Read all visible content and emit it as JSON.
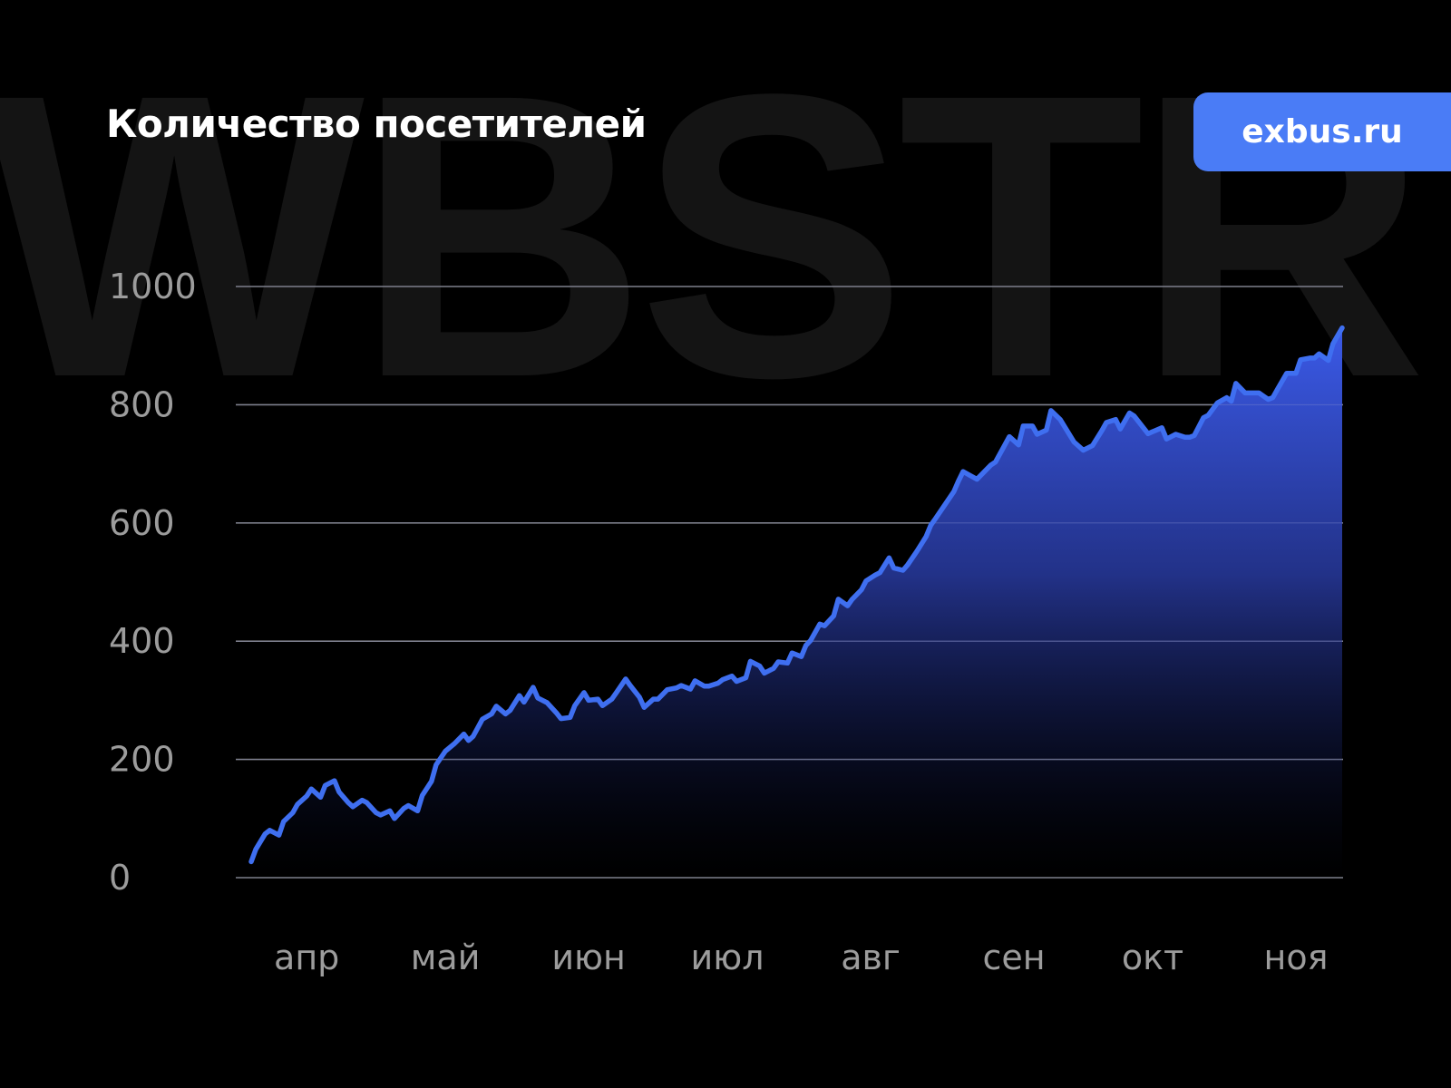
{
  "watermark": "WBSTR",
  "header": {
    "title": "Количество посетителей",
    "badge": "exbus.ru"
  },
  "colors": {
    "background": "#000000",
    "line": "#3f6ff0",
    "badge": "#4a7cf6",
    "grid": "#7a7a7a",
    "watermark": "#141414"
  },
  "chart_data": {
    "type": "area",
    "title": "Количество посетителей",
    "xlabel": "",
    "ylabel": "",
    "ylim": [
      0,
      1000
    ],
    "yticks": [
      "0",
      "200",
      "400",
      "600",
      "800",
      "1000"
    ],
    "xticks": [
      "апр",
      "май",
      "июн",
      "июл",
      "авг",
      "сен",
      "окт",
      "ноя"
    ],
    "grid": "horizontal",
    "legend": "none",
    "series": [
      {
        "x": [
          "04-03",
          "04-04",
          "04-06",
          "04-07",
          "04-09",
          "04-10",
          "04-12",
          "04-13",
          "04-15",
          "04-16",
          "04-18",
          "04-19",
          "04-21",
          "04-22",
          "04-24",
          "04-25",
          "04-27",
          "04-28",
          "04-30",
          "05-01",
          "05-03",
          "05-04",
          "05-06",
          "05-07",
          "05-09",
          "05-10",
          "05-12",
          "05-13",
          "05-15",
          "05-17",
          "05-19",
          "05-20",
          "05-21",
          "05-23",
          "05-25",
          "05-26",
          "05-28",
          "05-29",
          "05-31",
          "06-01",
          "06-03",
          "06-04",
          "06-06",
          "06-08",
          "06-09",
          "06-11",
          "06-12",
          "06-14",
          "06-15",
          "06-17",
          "06-18",
          "06-20",
          "06-21",
          "06-23",
          "06-24",
          "06-26",
          "06-27",
          "06-29",
          "06-30",
          "07-02",
          "07-04",
          "07-05",
          "07-07",
          "07-08",
          "07-10",
          "07-11",
          "07-13",
          "07-14",
          "07-16",
          "07-17",
          "07-19",
          "07-20",
          "07-22",
          "07-23",
          "07-25",
          "07-26",
          "07-28",
          "07-29",
          "07-31",
          "08-01",
          "08-02",
          "08-04",
          "08-05",
          "08-07",
          "08-08",
          "08-10",
          "08-11",
          "08-13",
          "08-14",
          "08-16",
          "08-17",
          "08-19",
          "08-20",
          "08-22",
          "08-23",
          "08-25",
          "08-27",
          "08-28",
          "08-29",
          "08-31",
          "09-02",
          "09-03",
          "09-04",
          "09-07",
          "09-10",
          "09-11",
          "09-14",
          "09-16",
          "09-17",
          "09-19",
          "09-20",
          "09-22",
          "09-23",
          "09-25",
          "09-28",
          "09-30",
          "10-02",
          "10-04",
          "10-05",
          "10-07",
          "10-08",
          "10-10",
          "10-11",
          "10-14",
          "10-17",
          "10-18",
          "10-20",
          "10-22",
          "10-23",
          "10-24",
          "10-26",
          "10-27",
          "10-29",
          "10-31",
          "11-01",
          "11-02",
          "11-04",
          "11-07",
          "11-09",
          "11-10",
          "11-11",
          "11-13",
          "11-15",
          "11-16",
          "11-18",
          "11-19",
          "11-20",
          "11-22",
          "11-23",
          "11-25"
        ],
        "values": [
          27,
          48,
          74,
          80,
          72,
          95,
          110,
          124,
          138,
          150,
          136,
          156,
          164,
          145,
          127,
          120,
          131,
          127,
          110,
          106,
          113,
          100,
          117,
          122,
          113,
          139,
          163,
          191,
          214,
          227,
          243,
          232,
          239,
          268,
          277,
          290,
          277,
          283,
          308,
          297,
          322,
          304,
          296,
          279,
          269,
          271,
          291,
          313,
          300,
          302,
          291,
          302,
          313,
          336,
          325,
          305,
          288,
          302,
          302,
          318,
          321,
          325,
          319,
          333,
          324,
          324,
          329,
          335,
          341,
          332,
          338,
          366,
          358,
          346,
          354,
          365,
          363,
          380,
          374,
          393,
          401,
          429,
          426,
          443,
          471,
          460,
          471,
          487,
          502,
          512,
          516,
          541,
          524,
          520,
          529,
          552,
          577,
          596,
          607,
          630,
          653,
          671,
          687,
          674,
          698,
          703,
          746,
          732,
          764,
          764,
          750,
          757,
          790,
          775,
          737,
          723,
          731,
          756,
          770,
          775,
          759,
          786,
          781,
          751,
          761,
          742,
          750,
          745,
          745,
          748,
          778,
          782,
          803,
          812,
          806,
          836,
          820,
          820,
          809,
          812,
          826,
          853,
          853,
          876,
          879,
          879,
          886,
          875,
          903,
          930
        ]
      }
    ]
  }
}
